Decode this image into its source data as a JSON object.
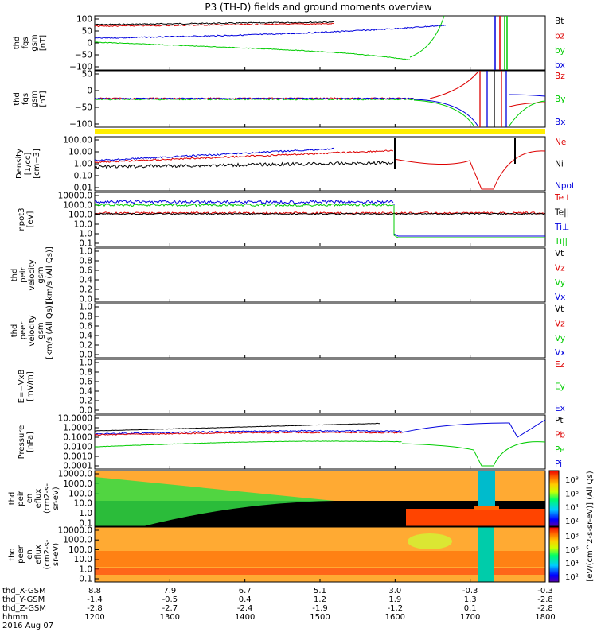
{
  "title": "P3 (TH-D) fields and ground moments overview",
  "colors": {
    "black": "#000000",
    "red": "#dd0000",
    "green": "#00cc00",
    "blue": "#0000dd",
    "yellow": "#ffee00"
  },
  "chart_data": {
    "type": "line",
    "x_axis": {
      "rows": [
        {
          "label": "thd_X-GSM",
          "ticks": [
            "8.8",
            "7.9",
            "6.7",
            "5.1",
            "3.0",
            "-0.3",
            "-0.3"
          ]
        },
        {
          "label": "thd_Y-GSM",
          "ticks": [
            "-1.4",
            "-0.5",
            "0.4",
            "1.2",
            "1.9",
            "1.3",
            "-2.8"
          ]
        },
        {
          "label": "thd_Z-GSM",
          "ticks": [
            "-2.8",
            "-2.7",
            "-2.4",
            "-1.9",
            "-1.2",
            "0.1",
            "-2.8"
          ]
        },
        {
          "label": "hhmm",
          "ticks": [
            "1200",
            "1300",
            "1400",
            "1500",
            "1600",
            "1700",
            "1800"
          ]
        }
      ],
      "date": "2016 Aug 07"
    },
    "panels": [
      {
        "ylabel": [
          "thd",
          "fgs",
          "gsm",
          "[nT]"
        ],
        "ticks": [
          "100",
          "50",
          "0",
          "−50",
          "−100"
        ],
        "legend": [
          {
            "name": "Bt",
            "color": "#000000"
          },
          {
            "name": "bz",
            "color": "#dd0000"
          },
          {
            "name": "by",
            "color": "#00cc00"
          },
          {
            "name": "bx",
            "color": "#0000dd"
          }
        ]
      },
      {
        "ylabel": [
          "thd",
          "fgs",
          "gsm",
          "[nT]"
        ],
        "ticks": [
          "50",
          "0",
          "−50",
          "−100"
        ],
        "legend": [
          {
            "name": "Bz",
            "color": "#dd0000"
          },
          {
            "name": "By",
            "color": "#00cc00"
          },
          {
            "name": "Bx",
            "color": "#0000dd"
          }
        ]
      },
      {
        "ylabel": [
          "Density",
          "[1/cc]",
          "[cm−3]"
        ],
        "ticks": [
          "100.00",
          "10.00",
          "1.00",
          "0.10",
          "0.01"
        ],
        "legend": [
          {
            "name": "Ne",
            "color": "#dd0000"
          },
          {
            "name": "Ni",
            "color": "#000000"
          },
          {
            "name": "Npot",
            "color": "#0000dd"
          }
        ]
      },
      {
        "ylabel": [
          "npot3",
          "[eV]"
        ],
        "ticks": [
          "10000.0",
          "1000.0",
          "100.0",
          "10.0",
          "1.0",
          "0.1"
        ],
        "legend": [
          {
            "name": "Te⊥",
            "color": "#dd0000"
          },
          {
            "name": "Te||",
            "color": "#000000"
          },
          {
            "name": "Ti⊥",
            "color": "#0000dd"
          },
          {
            "name": "Ti||",
            "color": "#00cc00"
          }
        ]
      },
      {
        "ylabel": [
          "thd",
          "peir",
          "velocity",
          "gsm",
          "[km/s (All Qs)]"
        ],
        "ticks": [
          "1.0",
          "0.8",
          "0.6",
          "0.4",
          "0.2",
          "0.0"
        ],
        "legend": [
          {
            "name": "Vt",
            "color": "#000000"
          },
          {
            "name": "Vz",
            "color": "#dd0000"
          },
          {
            "name": "Vy",
            "color": "#00cc00"
          },
          {
            "name": "Vx",
            "color": "#0000dd"
          }
        ]
      },
      {
        "ylabel": [
          "thd",
          "peer",
          "velocity",
          "gsm",
          "[km/s (All Qs)]"
        ],
        "ticks": [
          "1.0",
          "0.8",
          "0.6",
          "0.4",
          "0.2",
          "0.0"
        ],
        "legend": [
          {
            "name": "Vt",
            "color": "#000000"
          },
          {
            "name": "Vz",
            "color": "#dd0000"
          },
          {
            "name": "Vy",
            "color": "#00cc00"
          },
          {
            "name": "Vx",
            "color": "#0000dd"
          }
        ]
      },
      {
        "ylabel": [
          "E=−VxB",
          "[mV/m]"
        ],
        "ticks": [
          "1.0",
          "0.8",
          "0.6",
          "0.4",
          "0.2",
          "0.0"
        ],
        "legend": [
          {
            "name": "Ez",
            "color": "#dd0000"
          },
          {
            "name": "Ey",
            "color": "#00cc00"
          },
          {
            "name": "Ex",
            "color": "#0000dd"
          }
        ]
      },
      {
        "ylabel": [
          "Pressure",
          "[nPa]"
        ],
        "ticks": [
          "10.0000",
          "1.0000",
          "0.1000",
          "0.0100",
          "0.0010",
          "0.0001"
        ],
        "legend": [
          {
            "name": "Pt",
            "color": "#000000"
          },
          {
            "name": "Pb",
            "color": "#dd0000"
          },
          {
            "name": "Pe",
            "color": "#00cc00"
          },
          {
            "name": "Pi",
            "color": "#0000dd"
          }
        ]
      },
      {
        "ylabel": [
          "thd",
          "peir",
          "en",
          "eflux",
          "(cm2-s-",
          "sr-eV)"
        ],
        "ticks": [
          "10000.0",
          "1000.0",
          "100.0",
          "10.0",
          "1.0",
          "0.1"
        ],
        "colorbar_ticks": [
          "10⁸",
          "10⁶",
          "10⁴",
          "10²"
        ]
      },
      {
        "ylabel": [
          "thd",
          "peer",
          "en",
          "eflux",
          "(cm2-s-",
          "sr-eV)"
        ],
        "ticks": [
          "10000.0",
          "1000.0",
          "100.0",
          "10.0",
          "1.0",
          "0.1"
        ],
        "colorbar_ticks": [
          "10⁸",
          "10⁶",
          "10⁴",
          "10²"
        ]
      }
    ],
    "colorbar_label": "[eV/(cm^2-s-sr-eV)] (All Qs)"
  }
}
